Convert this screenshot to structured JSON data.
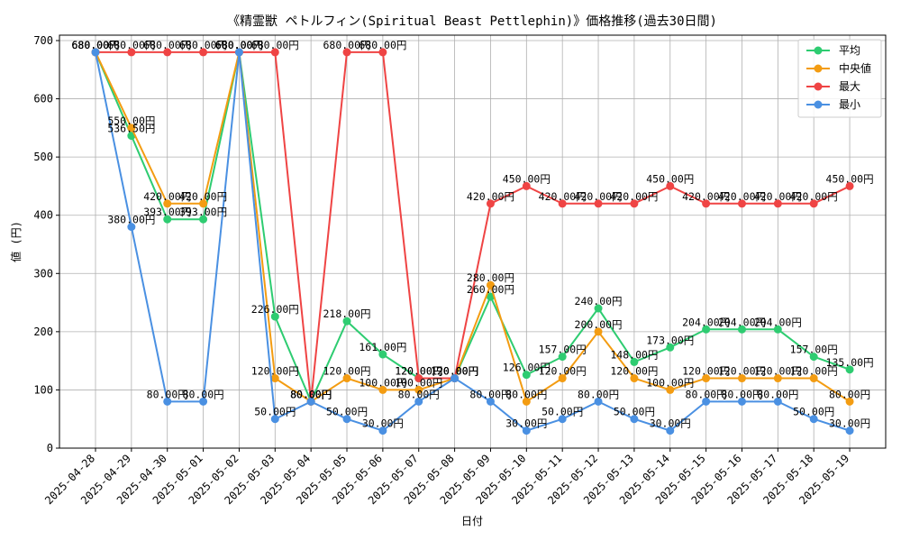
{
  "chart_data": {
    "type": "line",
    "title": "《精霊獣 ペトルフィン(Spiritual Beast Pettlephin)》価格推移(過去30日間)",
    "xlabel": "日付",
    "ylabel": "値 (円)",
    "ylim": [
      0,
      700
    ],
    "yticks": [
      0,
      100,
      200,
      300,
      400,
      500,
      600,
      700
    ],
    "grid": true,
    "legend_position": "top-right",
    "value_suffix": "円",
    "categories": [
      "2025-04-28",
      "2025-04-29",
      "2025-04-30",
      "2025-05-01",
      "2025-05-02",
      "2025-05-03",
      "2025-05-04",
      "2025-05-05",
      "2025-05-06",
      "2025-05-07",
      "2025-05-08",
      "2025-05-09",
      "2025-05-10",
      "2025-05-11",
      "2025-05-12",
      "2025-05-13",
      "2025-05-14",
      "2025-05-15",
      "2025-05-16",
      "2025-05-17",
      "2025-05-18",
      "2025-05-19"
    ],
    "series": [
      {
        "name": "平均",
        "color": "#2ecc71",
        "values": [
          680,
          536.5,
          393,
          393,
          680,
          226,
          80,
          218,
          161,
          120,
          120,
          260,
          126,
          157,
          240,
          148,
          173,
          204,
          204,
          204,
          157,
          135
        ]
      },
      {
        "name": "中央値",
        "color": "#f39c12",
        "values": [
          680,
          550,
          420,
          420,
          680,
          120,
          80,
          120,
          100,
          100,
          120,
          280,
          80,
          120,
          200,
          120,
          100,
          120,
          120,
          120,
          120,
          80
        ]
      },
      {
        "name": "最大",
        "color": "#ef4444",
        "values": [
          680,
          680,
          680,
          680,
          680,
          680,
          80,
          680,
          680,
          120,
          120,
          420,
          450,
          420,
          420,
          420,
          450,
          420,
          420,
          420,
          420,
          450
        ]
      },
      {
        "name": "最小",
        "color": "#4a90e2",
        "values": [
          680,
          380,
          80,
          80,
          680,
          50,
          80,
          50,
          30,
          80,
          120,
          80,
          30,
          50,
          80,
          50,
          30,
          80,
          80,
          80,
          50,
          30
        ]
      }
    ]
  }
}
